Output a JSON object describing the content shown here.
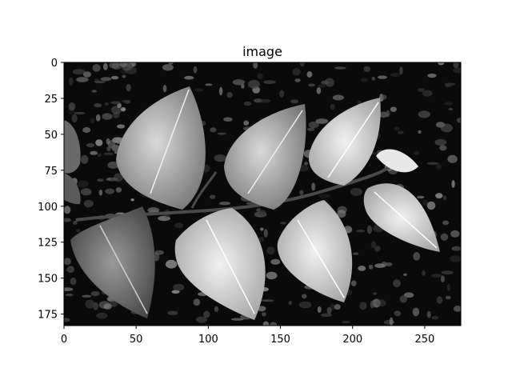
{
  "figure": {
    "title": "image"
  },
  "chart_data": {
    "type": "image",
    "title": "image",
    "xlim": [
      0,
      275
    ],
    "ylim": [
      183,
      0
    ],
    "x_ticks": [
      {
        "value": 0,
        "label": "0"
      },
      {
        "value": 50,
        "label": "50"
      },
      {
        "value": 100,
        "label": "100"
      },
      {
        "value": 150,
        "label": "150"
      },
      {
        "value": 200,
        "label": "200"
      },
      {
        "value": 250,
        "label": "250"
      }
    ],
    "y_ticks": [
      {
        "value": 0,
        "label": "0"
      },
      {
        "value": 25,
        "label": "25"
      },
      {
        "value": 50,
        "label": "50"
      },
      {
        "value": 75,
        "label": "75"
      },
      {
        "value": 100,
        "label": "100"
      },
      {
        "value": 125,
        "label": "125"
      },
      {
        "value": 150,
        "label": "150"
      },
      {
        "value": 175,
        "label": "175"
      }
    ],
    "grid": false,
    "colormap": "gray",
    "image_subject": "leaves"
  }
}
